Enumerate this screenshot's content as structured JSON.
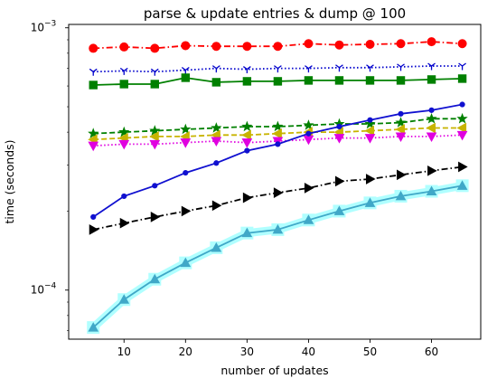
{
  "chart_data": {
    "type": "line",
    "title": "parse & update entries & dump @ 100",
    "xlabel": "number of updates",
    "ylabel": "time (seconds)",
    "xlim": [
      1.0,
      68.0
    ],
    "ylim": [
      6.5e-05,
      0.00103
    ],
    "yscale": "log",
    "xticks": [
      10,
      20,
      30,
      40,
      50,
      60
    ],
    "yticks": [
      {
        "value": 0.0001,
        "label": "10",
        "exp": "−4"
      },
      {
        "value": 0.001,
        "label": "10",
        "exp": "−3"
      }
    ],
    "grid": false,
    "legend": "none",
    "x": [
      5,
      10,
      15,
      20,
      25,
      30,
      35,
      40,
      45,
      50,
      55,
      60,
      65
    ],
    "series": [
      {
        "color": "#ff0000",
        "linestyle": "dashdot",
        "marker": "circle",
        "values": [
          0.000835,
          0.000845,
          0.000835,
          0.000855,
          0.00085,
          0.00085,
          0.00085,
          0.00087,
          0.00086,
          0.000865,
          0.00087,
          0.000885,
          0.00087
        ]
      },
      {
        "color": "#0000cc",
        "linestyle": "dotted",
        "marker": "tri_down",
        "values": [
          0.00068,
          0.000685,
          0.00068,
          0.00069,
          0.0007,
          0.000695,
          0.0007,
          0.0007,
          0.000705,
          0.000705,
          0.00071,
          0.000715,
          0.000715
        ]
      },
      {
        "color": "#008000",
        "linestyle": "solid",
        "marker": "square",
        "values": [
          0.000605,
          0.00061,
          0.00061,
          0.000645,
          0.00062,
          0.000625,
          0.000625,
          0.00063,
          0.00063,
          0.00063,
          0.00063,
          0.000635,
          0.00064
        ]
      },
      {
        "color": "#008000",
        "linestyle": "dashed",
        "marker": "star",
        "values": [
          0.000395,
          0.0004,
          0.000405,
          0.00041,
          0.000415,
          0.00042,
          0.00042,
          0.000425,
          0.00043,
          0.00043,
          0.000435,
          0.00045,
          0.00045
        ]
      },
      {
        "color": "#c8b400",
        "linestyle": "dashed",
        "marker": "triangle_left",
        "values": [
          0.000375,
          0.00038,
          0.000385,
          0.000385,
          0.00039,
          0.00039,
          0.000395,
          0.0004,
          0.0004,
          0.000405,
          0.00041,
          0.000415,
          0.000415
        ]
      },
      {
        "color": "#e000e0",
        "linestyle": "dotted",
        "marker": "triangle_down",
        "values": [
          0.000355,
          0.00036,
          0.00036,
          0.000365,
          0.00037,
          0.000365,
          0.00037,
          0.000375,
          0.00038,
          0.00038,
          0.000385,
          0.000385,
          0.00039
        ]
      },
      {
        "color": "#1010d0",
        "linestyle": "solid",
        "marker": "dot",
        "values": [
          0.00019,
          0.000228,
          0.00025,
          0.00028,
          0.000305,
          0.00034,
          0.00036,
          0.000395,
          0.00042,
          0.000445,
          0.00047,
          0.000485,
          0.00051
        ]
      },
      {
        "color": "#000000",
        "linestyle": "dashdot",
        "marker": "triangle_right",
        "values": [
          0.00017,
          0.00018,
          0.00019,
          0.0002,
          0.00021,
          0.000225,
          0.000235,
          0.000245,
          0.00026,
          0.000265,
          0.000275,
          0.000285,
          0.000295
        ]
      },
      {
        "color": "#40a8c8",
        "linestyle": "solid",
        "marker": "triangle_up",
        "halo": "#b0ffff",
        "values": [
          7.2e-05,
          9.2e-05,
          0.00011,
          0.000127,
          0.000145,
          0.000165,
          0.00017,
          0.000185,
          0.0002,
          0.000215,
          0.000228,
          0.000238,
          0.00025
        ]
      }
    ]
  }
}
